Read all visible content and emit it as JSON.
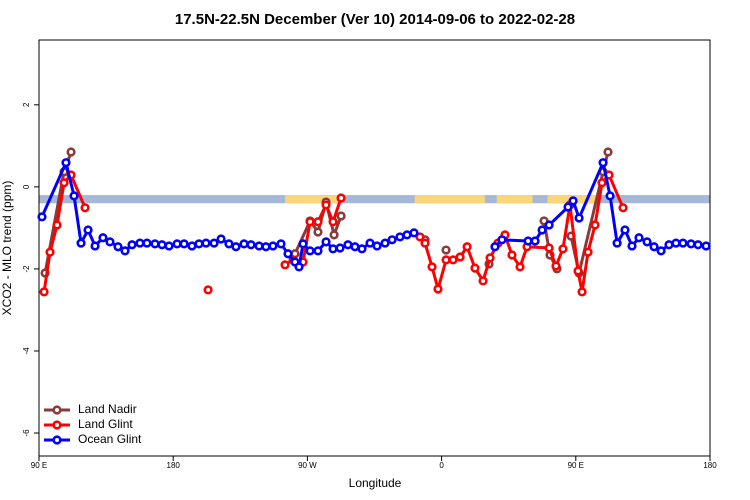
{
  "chart_data": {
    "type": "line",
    "title": "17.5N-22.5N December (Ver 10)   2014-09-06 to 2022-02-28",
    "xlabel": "Longitude",
    "ylabel": "XCO2 - MLO trend (ppm)",
    "xlim": [
      90,
      540
    ],
    "ylim": [
      -6.56,
      3.58
    ],
    "xticks": [
      {
        "value": 90,
        "label": "90 E"
      },
      180,
      {
        "value": 270,
        "label": "90 W"
      },
      {
        "value": 360,
        "label": "0"
      },
      {
        "value": 450,
        "label": "90 E"
      },
      {
        "value": 540,
        "label": "180"
      }
    ],
    "yticks": [
      -6,
      -4,
      -2,
      0,
      2
    ],
    "grid": false,
    "legend": "bottom-left",
    "surface_band": {
      "range": [
        -0.4,
        -0.2
      ],
      "ocean_color": "#a5b8d8",
      "land_color": "#fad67a",
      "land_spans": [
        [
          255,
          292
        ],
        [
          342,
          389
        ],
        [
          397,
          421
        ],
        [
          431,
          466
        ]
      ]
    },
    "series": [
      {
        "name": "Land Nadir",
        "color": "#8b3a3a",
        "x": [
          94.1,
          106.8,
          111.5,
          null,
          261.7,
          271.8,
          277.1,
          282.5,
          287.9,
          292.6,
          null,
          348.9,
          null,
          363.0,
          null,
          391.8,
          null,
          428.7,
          432.7,
          437.4,
          null,
          446.8,
          452.2,
          468.3,
          471.6
        ],
        "values": [
          -2.1,
          0.37,
          0.85,
          null,
          -1.63,
          -0.83,
          -1.1,
          -0.37,
          -1.17,
          -0.71,
          null,
          -1.29,
          null,
          -1.54,
          null,
          -1.88,
          null,
          -0.83,
          -1.66,
          -2.0,
          null,
          -1.2,
          -2.1,
          0.37,
          0.85
        ]
      },
      {
        "name": "Land Glint",
        "color": "#ff0000",
        "x": [
          93.4,
          97.4,
          102.1,
          106.8,
          111.5,
          120.9,
          null,
          203.4,
          null,
          255.0,
          260.4,
          267.1,
          271.8,
          277.1,
          282.5,
          287.2,
          292.6,
          null,
          345.5,
          348.9,
          353.6,
          357.6,
          363.0,
          367.7,
          372.4,
          377.1,
          382.4,
          387.8,
          392.5,
          397.8,
          402.5,
          407.2,
          412.6,
          417.3,
          432.1,
          436.7,
          441.4,
          446.1,
          451.5,
          454.2,
          458.2,
          462.9,
          467.6,
          472.3,
          481.7
        ],
        "values": [
          -2.56,
          -1.59,
          -0.93,
          0.1,
          0.29,
          -0.51,
          null,
          -2.51,
          null,
          -1.9,
          -1.78,
          -1.83,
          -0.85,
          -0.85,
          -0.44,
          -0.85,
          -0.27,
          null,
          -1.22,
          -1.37,
          -1.95,
          -2.49,
          -1.78,
          -1.78,
          -1.71,
          -1.46,
          -1.98,
          -2.29,
          -1.73,
          -1.37,
          -1.17,
          -1.66,
          -1.95,
          -1.46,
          -1.49,
          -1.93,
          -1.51,
          -0.44,
          -2.05,
          -2.56,
          -1.59,
          -0.93,
          0.1,
          0.29,
          -0.51
        ]
      },
      {
        "name": "Ocean Glint",
        "color": "#0000ff",
        "x": [
          92.0,
          108.1,
          113.5,
          118.2,
          122.9,
          127.6,
          132.9,
          137.6,
          143.0,
          147.7,
          152.4,
          157.7,
          162.4,
          167.8,
          172.5,
          177.2,
          182.6,
          187.3,
          192.6,
          197.3,
          202.0,
          207.4,
          212.1,
          217.4,
          222.1,
          227.5,
          232.2,
          237.6,
          242.2,
          246.9,
          252.3,
          257.0,
          261.7,
          264.4,
          267.1,
          271.8,
          277.1,
          282.5,
          287.2,
          291.9,
          297.2,
          301.9,
          306.6,
          312.0,
          316.7,
          322.1,
          326.8,
          332.1,
          336.8,
          341.5,
          null,
          395.8,
          400.5,
          418.0,
          422.7,
          427.4,
          432.1,
          444.8,
          448.2,
          452.2,
          468.3,
          473.0,
          477.7,
          483.0,
          487.7,
          492.4,
          497.8,
          502.5,
          507.2,
          512.5,
          517.2,
          521.9,
          527.3,
          532.0,
          537.4
        ],
        "values": [
          -0.73,
          0.59,
          -0.22,
          -1.37,
          -1.05,
          -1.44,
          -1.24,
          -1.34,
          -1.46,
          -1.56,
          -1.41,
          -1.37,
          -1.37,
          -1.39,
          -1.41,
          -1.44,
          -1.39,
          -1.39,
          -1.44,
          -1.39,
          -1.37,
          -1.37,
          -1.27,
          -1.39,
          -1.46,
          -1.39,
          -1.41,
          -1.44,
          -1.46,
          -1.44,
          -1.39,
          -1.63,
          -1.83,
          -1.95,
          -1.39,
          -1.56,
          -1.56,
          -1.34,
          -1.51,
          -1.49,
          -1.41,
          -1.46,
          -1.51,
          -1.37,
          -1.44,
          -1.37,
          -1.29,
          -1.22,
          -1.17,
          -1.12,
          null,
          -1.46,
          -1.29,
          -1.32,
          -1.32,
          -1.05,
          -0.93,
          -0.49,
          -0.34,
          -0.76,
          0.59,
          -0.22,
          -1.37,
          -1.05,
          -1.44,
          -1.24,
          -1.34,
          -1.46,
          -1.56,
          -1.41,
          -1.37,
          -1.37,
          -1.39,
          -1.41,
          -1.44
        ]
      }
    ]
  }
}
